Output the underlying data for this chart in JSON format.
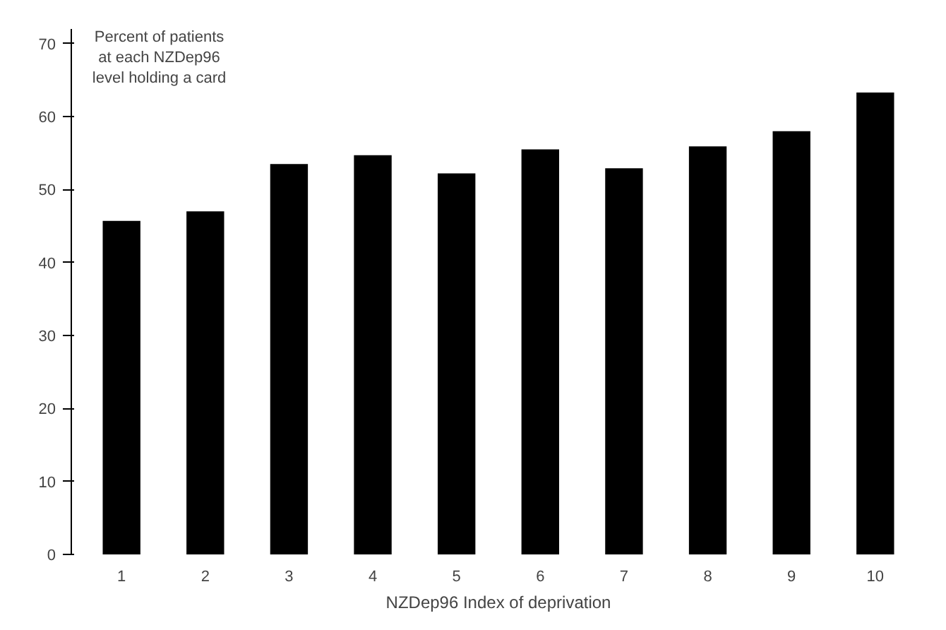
{
  "chart_data": {
    "type": "bar",
    "ylabel": "Percent of patients at each NZDep96 level holding a card",
    "xlabel": "NZDep96 Index of deprivation",
    "categories": [
      "1",
      "2",
      "3",
      "4",
      "5",
      "6",
      "7",
      "8",
      "9",
      "10"
    ],
    "values": [
      45.7,
      47,
      53.5,
      54.7,
      52.2,
      55.5,
      52.9,
      55.9,
      58,
      63.3
    ],
    "color": "#000000",
    "ylim": [
      0,
      72
    ],
    "yticks": [
      0,
      10,
      20,
      30,
      40,
      50,
      60,
      70
    ],
    "grid": false
  }
}
